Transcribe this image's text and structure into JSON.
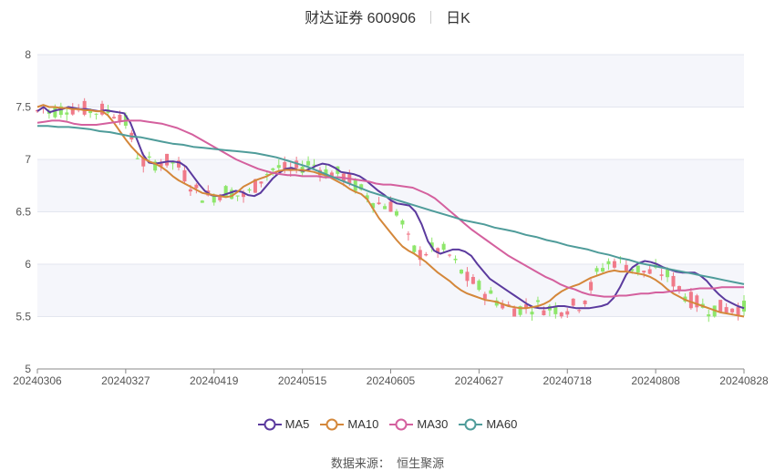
{
  "header": {
    "stock": "财达证券 600906",
    "period": "日K"
  },
  "source": {
    "label": "数据来源：",
    "value": "恒生聚源"
  },
  "chart_data": {
    "type": "candlestick",
    "title": "财达证券 600906",
    "ylim": [
      5,
      8
    ],
    "yticks": [
      5,
      5.5,
      6,
      6.5,
      7,
      7.5,
      8
    ],
    "xtick_labels": [
      "20240306",
      "20240327",
      "20240419",
      "20240515",
      "20240605",
      "20240627",
      "20240718",
      "20240808",
      "20240828"
    ],
    "xtick_index": [
      0,
      15,
      30,
      45,
      60,
      75,
      90,
      105,
      120
    ],
    "up_color": "#f07a89",
    "down_color": "#8ee66b",
    "series": [
      {
        "name": "MA5",
        "color": "#5b3a9e",
        "values": [
          7.46,
          7.5,
          7.45,
          7.47,
          7.48,
          7.5,
          7.49,
          7.48,
          7.48,
          7.47,
          7.46,
          7.47,
          7.46,
          7.45,
          7.44,
          7.35,
          7.2,
          7.05,
          6.97,
          6.96,
          6.97,
          6.98,
          6.98,
          6.97,
          6.93,
          6.85,
          6.77,
          6.7,
          6.66,
          6.65,
          6.66,
          6.68,
          6.7,
          6.69,
          6.66,
          6.65,
          6.68,
          6.75,
          6.82,
          6.87,
          6.91,
          6.92,
          6.9,
          6.89,
          6.91,
          6.94,
          6.96,
          6.95,
          6.92,
          6.88,
          6.87,
          6.86,
          6.84,
          6.8,
          6.75,
          6.7,
          6.66,
          6.61,
          6.58,
          6.57,
          6.56,
          6.5,
          6.38,
          6.22,
          6.13,
          6.1,
          6.12,
          6.14,
          6.14,
          6.12,
          6.08,
          6.0,
          5.93,
          5.86,
          5.82,
          5.78,
          5.74,
          5.7,
          5.66,
          5.62,
          5.59,
          5.58,
          5.58,
          5.59,
          5.6,
          5.6,
          5.59,
          5.58,
          5.58,
          5.58,
          5.59,
          5.6,
          5.62,
          5.68,
          5.78,
          5.9,
          5.97,
          6.01,
          6.03,
          6.02,
          6.0,
          5.97,
          5.95,
          5.93,
          5.92,
          5.92,
          5.92,
          5.89,
          5.84,
          5.77,
          5.71,
          5.66,
          5.63,
          5.6,
          5.58
        ]
      },
      {
        "name": "MA10",
        "color": "#d4873a",
        "values": [
          7.5,
          7.52,
          7.5,
          7.5,
          7.49,
          7.49,
          7.48,
          7.48,
          7.47,
          7.47,
          7.46,
          7.46,
          7.42,
          7.35,
          7.27,
          7.19,
          7.12,
          7.06,
          7.01,
          6.98,
          6.96,
          6.93,
          6.89,
          6.84,
          6.8,
          6.77,
          6.74,
          6.71,
          6.68,
          6.67,
          6.66,
          6.65,
          6.64,
          6.65,
          6.69,
          6.74,
          6.77,
          6.8,
          6.82,
          6.84,
          6.87,
          6.89,
          6.9,
          6.9,
          6.9,
          6.9,
          6.89,
          6.88,
          6.86,
          6.85,
          6.82,
          6.79,
          6.76,
          6.72,
          6.69,
          6.67,
          6.62,
          6.53,
          6.44,
          6.37,
          6.3,
          6.23,
          6.17,
          6.13,
          6.1,
          6.06,
          6.02,
          5.97,
          5.92,
          5.88,
          5.84,
          5.79,
          5.75,
          5.72,
          5.7,
          5.68,
          5.66,
          5.65,
          5.64,
          5.62,
          5.6,
          5.59,
          5.58,
          5.58,
          5.59,
          5.6,
          5.62,
          5.65,
          5.7,
          5.74,
          5.77,
          5.79,
          5.81,
          5.84,
          5.87,
          5.89,
          5.91,
          5.93,
          5.94,
          5.93,
          5.93,
          5.92,
          5.91,
          5.9,
          5.88,
          5.85,
          5.81,
          5.76,
          5.72,
          5.69,
          5.66,
          5.64,
          5.62,
          5.6,
          5.58,
          5.56,
          5.54,
          5.53,
          5.52,
          5.51,
          5.5
        ]
      },
      {
        "name": "MA30",
        "color": "#d4609e",
        "values": [
          7.35,
          7.36,
          7.37,
          7.37,
          7.36,
          7.34,
          7.33,
          7.33,
          7.33,
          7.34,
          7.35,
          7.36,
          7.37,
          7.37,
          7.37,
          7.36,
          7.35,
          7.34,
          7.32,
          7.3,
          7.27,
          7.24,
          7.2,
          7.16,
          7.12,
          7.08,
          7.04,
          7.0,
          6.97,
          6.94,
          6.91,
          6.89,
          6.87,
          6.86,
          6.85,
          6.85,
          6.84,
          6.84,
          6.84,
          6.83,
          6.83,
          6.83,
          6.82,
          6.81,
          6.8,
          6.79,
          6.77,
          6.76,
          6.76,
          6.75,
          6.74,
          6.73,
          6.7,
          6.67,
          6.63,
          6.57,
          6.51,
          6.45,
          6.39,
          6.33,
          6.28,
          6.23,
          6.18,
          6.13,
          6.08,
          6.04,
          6.0,
          5.96,
          5.92,
          5.88,
          5.85,
          5.81,
          5.78,
          5.76,
          5.73,
          5.71,
          5.7,
          5.69,
          5.69,
          5.7,
          5.7,
          5.71,
          5.72,
          5.72,
          5.73,
          5.73,
          5.74,
          5.75,
          5.75,
          5.76,
          5.77,
          5.77,
          5.77,
          5.78,
          5.78,
          5.78,
          5.78
        ]
      },
      {
        "name": "MA60",
        "color": "#4f9c9a",
        "values": [
          7.32,
          7.32,
          7.31,
          7.31,
          7.3,
          7.29,
          7.27,
          7.26,
          7.24,
          7.22,
          7.21,
          7.19,
          7.17,
          7.15,
          7.14,
          7.12,
          7.11,
          7.1,
          7.09,
          7.08,
          7.07,
          7.06,
          7.04,
          7.02,
          6.99,
          6.96,
          6.93,
          6.89,
          6.85,
          6.81,
          6.77,
          6.73,
          6.69,
          6.66,
          6.63,
          6.6,
          6.57,
          6.54,
          6.51,
          6.48,
          6.45,
          6.42,
          6.4,
          6.38,
          6.35,
          6.33,
          6.31,
          6.28,
          6.26,
          6.23,
          6.21,
          6.18,
          6.16,
          6.14,
          6.11,
          6.09,
          6.06,
          6.04,
          6.01,
          5.99,
          5.97,
          5.95,
          5.93,
          5.91,
          5.89,
          5.87,
          5.85,
          5.83,
          5.81
        ]
      }
    ]
  },
  "legend": [
    {
      "label": "MA5",
      "color": "#5b3a9e"
    },
    {
      "label": "MA10",
      "color": "#d4873a"
    },
    {
      "label": "MA30",
      "color": "#d4609e"
    },
    {
      "label": "MA60",
      "color": "#4f9c9a"
    }
  ]
}
